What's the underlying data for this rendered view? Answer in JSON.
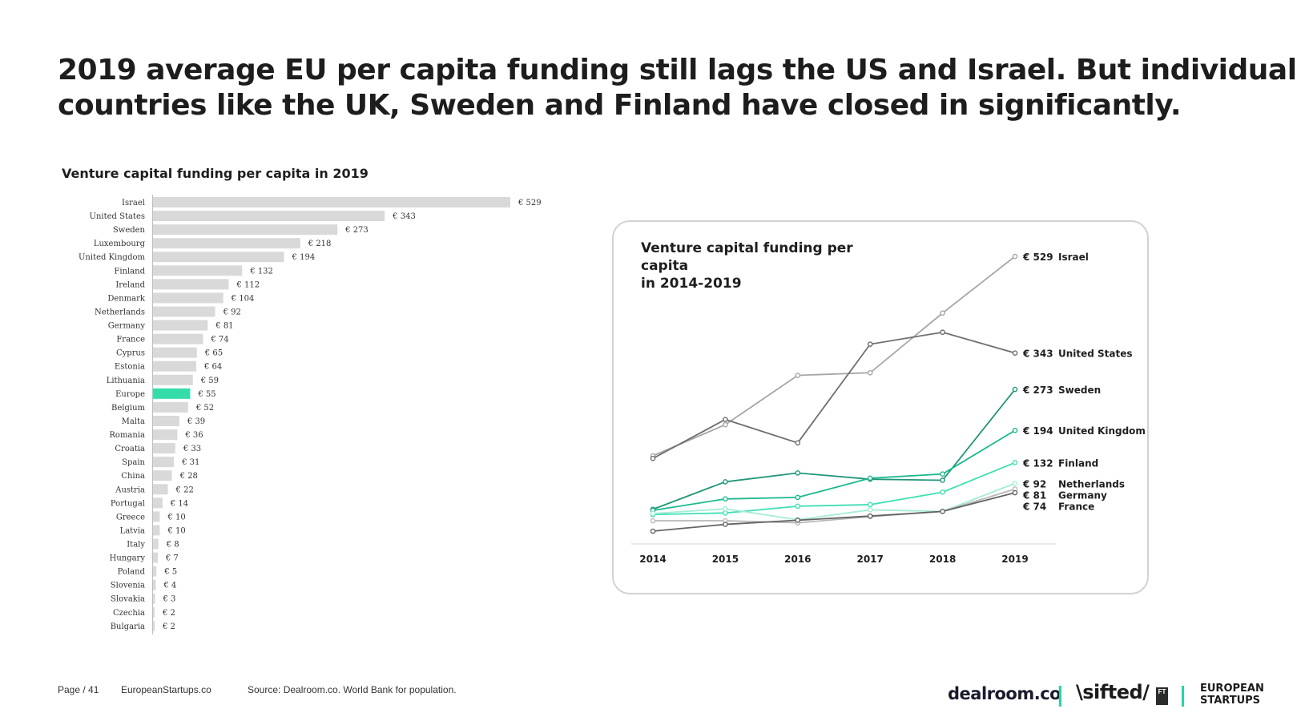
{
  "headline": {
    "line1": "2019 average EU per capita funding still lags the US and Israel. But individual",
    "line2": "countries like the UK, Sweden and Finland have closed in significantly."
  },
  "colors": {
    "bar": "#d9d9d9",
    "bar_highlight": "#34dcaa",
    "brand_accent": "#2ad3a5",
    "text_dark": "#1e1e1e"
  },
  "chart_data": [
    {
      "type": "bar",
      "orientation": "horizontal",
      "title": "Venture capital funding per capita in 2019",
      "value_prefix": "€ ",
      "highlight": "Europe",
      "categories": [
        "Israel",
        "United States",
        "Sweden",
        "Luxembourg",
        "United Kingdom",
        "Finland",
        "Ireland",
        "Denmark",
        "Netherlands",
        "Germany",
        "France",
        "Cyprus",
        "Estonia",
        "Lithuania",
        "Europe",
        "Belgium",
        "Malta",
        "Romania",
        "Croatia",
        "Spain",
        "China",
        "Austria",
        "Portugal",
        "Greece",
        "Latvia",
        "Italy",
        "Hungary",
        "Poland",
        "Slovenia",
        "Slovakia",
        "Czechia",
        "Bulgaria"
      ],
      "values": [
        529,
        343,
        273,
        218,
        194,
        132,
        112,
        104,
        92,
        81,
        74,
        65,
        64,
        59,
        55,
        52,
        39,
        36,
        33,
        31,
        28,
        22,
        14,
        10,
        10,
        8,
        7,
        5,
        4,
        3,
        2,
        2
      ],
      "xlim": [
        0,
        529
      ]
    },
    {
      "type": "line",
      "title_line1": "Venture capital funding per capita",
      "title_line2": "in 2014-2019",
      "x": [
        "2014",
        "2015",
        "2016",
        "2017",
        "2018",
        "2019"
      ],
      "ylim": [
        0,
        560
      ],
      "series": [
        {
          "name": "Israel",
          "label": "€ 529",
          "color": "#a6a6a6",
          "values": [
            145,
            205,
            300,
            305,
            420,
            529
          ]
        },
        {
          "name": "United States",
          "label": "€ 343",
          "color": "#6e6e6e",
          "values": [
            140,
            215,
            170,
            360,
            383,
            343
          ]
        },
        {
          "name": "Sweden",
          "label": "€ 273",
          "color": "#20967a",
          "values": [
            42,
            95,
            112,
            100,
            98,
            273
          ]
        },
        {
          "name": "United Kingdom",
          "label": "€ 194",
          "color": "#1db890",
          "values": [
            40,
            62,
            65,
            102,
            110,
            194
          ]
        },
        {
          "name": "Finland",
          "label": "€ 132",
          "color": "#3fe0b4",
          "values": [
            32,
            35,
            48,
            51,
            75,
            132
          ]
        },
        {
          "name": "Netherlands",
          "label": "€ 92",
          "color": "#a5ecd6",
          "values": [
            34,
            43,
            22,
            41,
            38,
            92
          ]
        },
        {
          "name": "Germany",
          "label": "€ 81",
          "color": "#b8b8b8",
          "values": [
            20,
            20,
            16,
            28,
            38,
            81
          ]
        },
        {
          "name": "France",
          "label": "€ 74",
          "color": "#646464",
          "values": [
            0,
            13,
            21,
            29,
            38,
            74
          ]
        }
      ]
    }
  ],
  "footer": {
    "page": "Page / 41",
    "site": "EuropeanStartups.co",
    "source": "Source: Dealroom.co. World Bank for population.",
    "logo_dealroom": "dealroom.co",
    "logo_sifted": "\\sifted/",
    "logo_ft": "FT",
    "logo_es_line1": "EUROPEAN",
    "logo_es_line2": "STARTUPS"
  }
}
